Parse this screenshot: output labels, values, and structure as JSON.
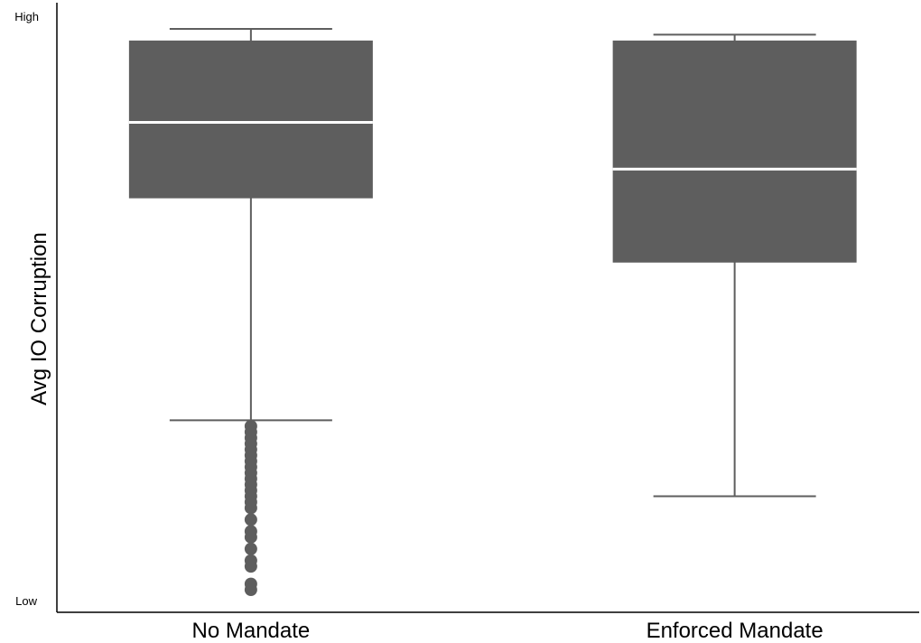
{
  "chart_data": {
    "type": "box",
    "title": "",
    "xlabel": "",
    "ylabel": "Avg IO Corruption",
    "y_tick_labels": {
      "low": "Low",
      "high": "High"
    },
    "ylim": [
      0,
      1
    ],
    "grid": false,
    "legend": "none",
    "colors": {
      "box": "#5e5e5e",
      "median": "#ffffff",
      "whisker": "#5e5e5e",
      "outlier": "#5e5e5e",
      "axis": "#000000"
    },
    "categories": [
      "No Mandate",
      "Enforced Mandate"
    ],
    "boxes": [
      {
        "name": "No Mandate",
        "whisker_low": 0.31,
        "q1": 0.69,
        "median": 0.82,
        "q3": 0.96,
        "whisker_high": 0.98,
        "outliers": [
          0.3,
          0.29,
          0.28,
          0.27,
          0.26,
          0.25,
          0.24,
          0.23,
          0.22,
          0.21,
          0.2,
          0.19,
          0.18,
          0.17,
          0.16,
          0.14,
          0.12,
          0.11,
          0.09,
          0.07,
          0.06,
          0.03,
          0.02
        ]
      },
      {
        "name": "Enforced Mandate",
        "whisker_low": 0.18,
        "q1": 0.58,
        "median": 0.74,
        "q3": 0.96,
        "whisker_high": 0.97,
        "outliers": []
      }
    ]
  }
}
